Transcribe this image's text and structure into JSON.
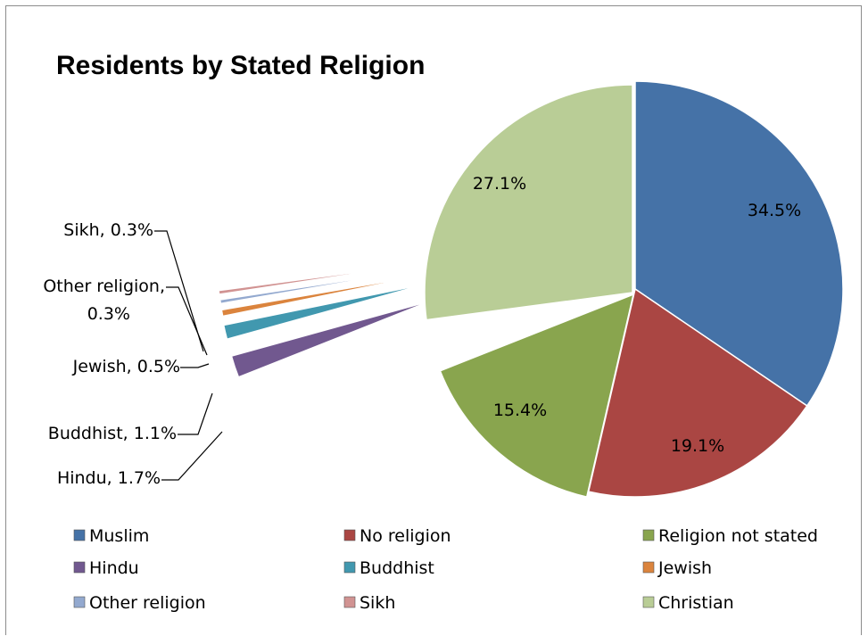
{
  "chart_data": {
    "type": "pie",
    "title": "Residents by Stated Religion",
    "categories": [
      "Muslim",
      "No religion",
      "Religion not stated",
      "Hindu",
      "Buddhist",
      "Jewish",
      "Other religion",
      "Sikh",
      "Christian"
    ],
    "values": [
      34.5,
      19.1,
      15.4,
      1.7,
      1.1,
      0.5,
      0.3,
      0.3,
      27.1
    ],
    "data_labels": [
      "34.5%",
      "19.1%",
      "15.4%",
      "Hindu, 1.7%",
      "Buddhist, 1.1%",
      "Jewish, 0.5%",
      "Other religion, 0.3%",
      "Sikh, 0.3%",
      "27.1%"
    ],
    "colors": [
      "#4572A7",
      "#AA4643",
      "#89A54E",
      "#71588F",
      "#4198AF",
      "#DB843D",
      "#93A9CF",
      "#D19392",
      "#B9CD96"
    ],
    "small_slices_exploded": true,
    "legend_position": "bottom",
    "legend_columns": 3
  }
}
